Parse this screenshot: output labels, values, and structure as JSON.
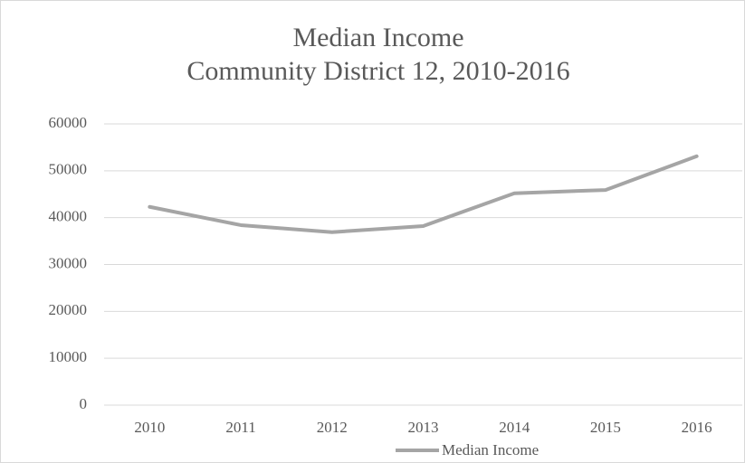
{
  "chart_data": {
    "type": "line",
    "title": "Median Income",
    "subtitle": "Community District 12, 2010-2016",
    "categories": [
      "2010",
      "2011",
      "2012",
      "2013",
      "2014",
      "2015",
      "2016"
    ],
    "series": [
      {
        "name": "Median Income",
        "color": "#a5a5a5",
        "values": [
          42300,
          38400,
          36900,
          38200,
          45200,
          45900,
          53100
        ]
      }
    ],
    "ylim": [
      0,
      60000
    ],
    "yticks": [
      0,
      10000,
      20000,
      30000,
      40000,
      50000,
      60000
    ],
    "grid": true,
    "legend": "bottom"
  }
}
